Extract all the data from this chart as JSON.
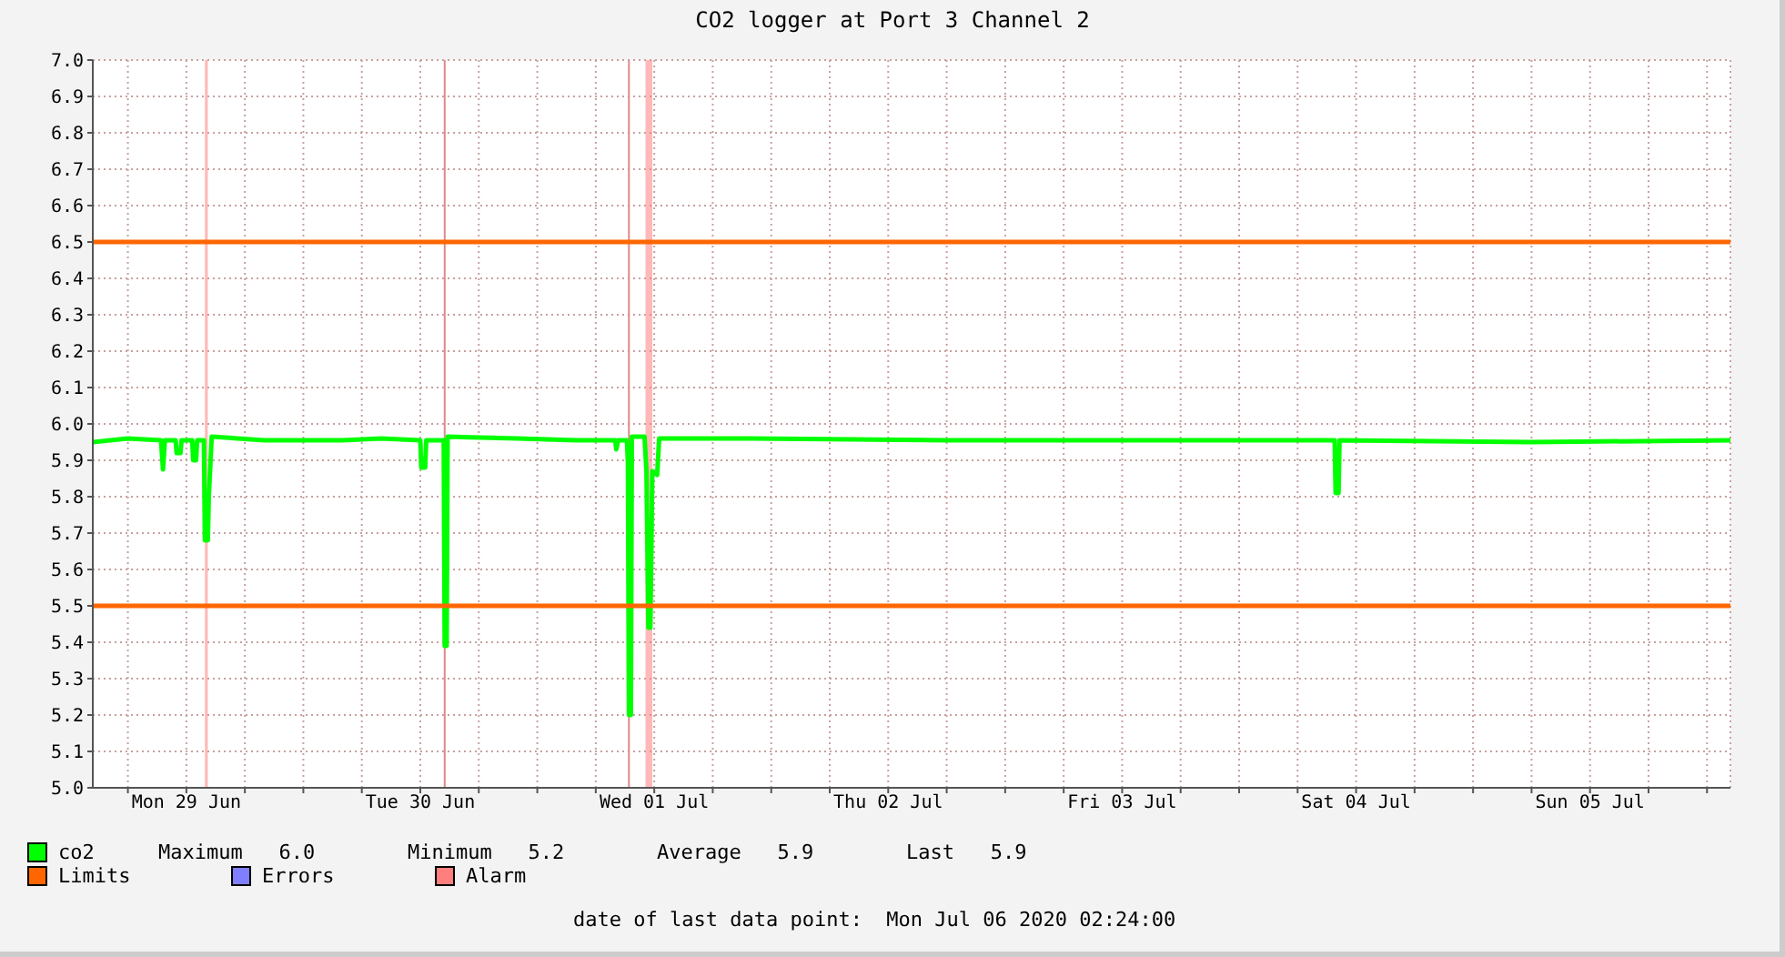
{
  "chart_data": {
    "type": "line",
    "title": "CO2 logger at Port 3 Channel 2",
    "xlim": [
      "2020-06-29T02:24",
      "2020-07-06T02:24"
    ],
    "xticks": [
      {
        "value": "2020-06-29T06:00",
        "label": null
      },
      {
        "value": "2020-06-29T12:00",
        "label": "Mon 29 Jun"
      },
      {
        "value": "2020-06-29T18:00",
        "label": null
      },
      {
        "value": "2020-06-30T00:00",
        "label": null
      },
      {
        "value": "2020-06-30T06:00",
        "label": null
      },
      {
        "value": "2020-06-30T12:00",
        "label": "Tue 30 Jun"
      },
      {
        "value": "2020-06-30T18:00",
        "label": null
      },
      {
        "value": "2020-07-01T00:00",
        "label": null
      },
      {
        "value": "2020-07-01T06:00",
        "label": null
      },
      {
        "value": "2020-07-01T12:00",
        "label": "Wed 01 Jul"
      },
      {
        "value": "2020-07-01T18:00",
        "label": null
      },
      {
        "value": "2020-07-02T00:00",
        "label": null
      },
      {
        "value": "2020-07-02T06:00",
        "label": null
      },
      {
        "value": "2020-07-02T12:00",
        "label": "Thu 02 Jul"
      },
      {
        "value": "2020-07-02T18:00",
        "label": null
      },
      {
        "value": "2020-07-03T00:00",
        "label": null
      },
      {
        "value": "2020-07-03T06:00",
        "label": null
      },
      {
        "value": "2020-07-03T12:00",
        "label": "Fri 03 Jul"
      },
      {
        "value": "2020-07-03T18:00",
        "label": null
      },
      {
        "value": "2020-07-04T00:00",
        "label": null
      },
      {
        "value": "2020-07-04T06:00",
        "label": null
      },
      {
        "value": "2020-07-04T12:00",
        "label": "Sat 04 Jul"
      },
      {
        "value": "2020-07-04T18:00",
        "label": null
      },
      {
        "value": "2020-07-05T00:00",
        "label": null
      },
      {
        "value": "2020-07-05T06:00",
        "label": null
      },
      {
        "value": "2020-07-05T12:00",
        "label": "Sun 05 Jul"
      },
      {
        "value": "2020-07-05T18:00",
        "label": null
      },
      {
        "value": "2020-07-06T00:00",
        "label": null
      }
    ],
    "ylim": [
      5.0,
      7.0
    ],
    "yticks": [
      {
        "value": 5.0,
        "label": "5.0"
      },
      5.1,
      5.2,
      5.3,
      5.4,
      5.5,
      5.6,
      5.7,
      5.8,
      5.9,
      {
        "value": 6.0,
        "label": "6.0"
      },
      6.1,
      6.2,
      6.3,
      6.4,
      6.5,
      6.6,
      6.7,
      6.8,
      6.9,
      {
        "value": 7.0,
        "label": "7.0"
      }
    ],
    "grid": true,
    "legend": "bottom",
    "marker": "none",
    "line_style": "solid",
    "series": [
      {
        "name": "co2",
        "color": "#00ff00",
        "x": [
          "2020-06-29T02:24",
          "2020-06-29T06:00",
          "2020-06-29T09:24",
          "2020-06-29T09:36",
          "2020-06-29T09:48",
          "2020-06-29T10:54",
          "2020-06-29T11:00",
          "2020-06-29T11:24",
          "2020-06-29T11:30",
          "2020-06-29T12:36",
          "2020-06-29T12:42",
          "2020-06-29T13:00",
          "2020-06-29T13:06",
          "2020-06-29T13:48",
          "2020-06-29T13:54",
          "2020-06-29T14:12",
          "2020-06-29T14:18",
          "2020-06-29T14:36",
          "2020-06-29T20:00",
          "2020-06-30T04:00",
          "2020-06-30T08:00",
          "2020-06-30T12:00",
          "2020-06-30T12:06",
          "2020-06-30T12:30",
          "2020-06-30T12:36",
          "2020-06-30T14:24",
          "2020-06-30T14:30",
          "2020-06-30T14:42",
          "2020-06-30T14:48",
          "2020-06-30T22:00",
          "2020-07-01T04:00",
          "2020-07-01T08:00",
          "2020-07-01T08:06",
          "2020-07-01T08:18",
          "2020-07-01T09:12",
          "2020-07-01T09:18",
          "2020-07-01T09:24",
          "2020-07-01T09:36",
          "2020-07-01T09:42",
          "2020-07-01T11:00",
          "2020-07-01T11:12",
          "2020-07-01T11:24",
          "2020-07-01T11:36",
          "2020-07-01T11:48",
          "2020-07-01T12:18",
          "2020-07-01T12:30",
          "2020-07-01T22:00",
          "2020-07-02T18:00",
          "2020-07-03T14:00",
          "2020-07-04T09:48",
          "2020-07-04T09:54",
          "2020-07-04T10:12",
          "2020-07-04T10:18",
          "2020-07-05T06:00",
          "2020-07-06T02:24"
        ],
        "values": [
          5.95,
          5.96,
          5.955,
          5.875,
          5.955,
          5.955,
          5.92,
          5.92,
          5.955,
          5.955,
          5.9,
          5.9,
          5.955,
          5.955,
          5.68,
          5.68,
          5.8,
          5.965,
          5.955,
          5.955,
          5.96,
          5.955,
          5.88,
          5.88,
          5.955,
          5.955,
          5.39,
          5.39,
          5.965,
          5.96,
          5.955,
          5.955,
          5.93,
          5.955,
          5.955,
          5.89,
          5.2,
          5.2,
          5.965,
          5.965,
          5.87,
          5.44,
          5.44,
          5.87,
          5.86,
          5.96,
          5.96,
          5.955,
          5.955,
          5.955,
          5.81,
          5.81,
          5.955,
          5.95,
          5.955
        ]
      },
      {
        "name": "Limits",
        "color": "#ff6600",
        "x": [
          "2020-06-29T02:24",
          "2020-07-06T02:24"
        ],
        "values": [
          6.5,
          6.5
        ]
      },
      {
        "color": "#ff6600",
        "x": [
          "2020-06-29T02:24",
          "2020-07-06T02:24"
        ],
        "values": [
          5.5,
          5.5
        ]
      },
      {
        "name": "Errors",
        "color": "#7f7fff"
      }
    ],
    "ref_lines": [
      {
        "axis": "x",
        "value": "2020-06-30T14:30",
        "color": "#e08888"
      },
      {
        "axis": "x",
        "value": "2020-07-01T09:24",
        "color": "#e08888"
      }
    ],
    "bands": [
      {
        "axis": "x",
        "from": "2020-06-29T13:54",
        "to": "2020-06-29T14:12",
        "label": "Alarm",
        "color": "#ff7f7f"
      },
      {
        "axis": "x",
        "from": "2020-07-01T11:06",
        "to": "2020-07-01T11:48",
        "color": "#ff7f7f"
      }
    ],
    "annotations": [
      "Maximum   6.0",
      "Minimum   5.2",
      "Average   5.9",
      "Last   5.9",
      "date of last data point:  Mon Jul 06 2020 02:24:00"
    ]
  }
}
